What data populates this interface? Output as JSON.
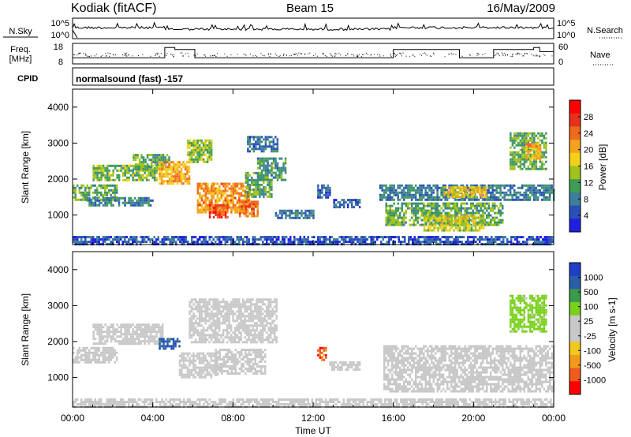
{
  "header": {
    "station": "Kodiak (fitACF)",
    "beam": "Beam 15",
    "date": "16/May/2009"
  },
  "noise_panel": {
    "left_label": "N.Sky",
    "right_label": "N.Search",
    "left_ticks": [
      "10^5",
      "10^0"
    ],
    "right_ticks": [
      "10^5",
      "10^0"
    ]
  },
  "freq_panel": {
    "left_label_line1": "Freq.",
    "left_label_line2": "[MHz]",
    "right_label": "Nave",
    "left_ticks": [
      "18",
      "8"
    ],
    "right_ticks": [
      "60",
      "0"
    ],
    "freq_steps": [
      {
        "x0": 0,
        "x1": 4.6,
        "y": 11
      },
      {
        "x0": 4.6,
        "x1": 5.1,
        "y": 16
      },
      {
        "x0": 5.1,
        "x1": 6.1,
        "y": 15
      },
      {
        "x0": 6.1,
        "x1": 16.0,
        "y": 11
      },
      {
        "x0": 16.0,
        "x1": 19.3,
        "y": 15
      },
      {
        "x0": 19.3,
        "x1": 21.0,
        "y": 11
      },
      {
        "x0": 21.0,
        "x1": 23.0,
        "y": 15
      },
      {
        "x0": 23.0,
        "x1": 23.3,
        "y": 16
      },
      {
        "x0": 23.3,
        "x1": 24.0,
        "y": 14
      }
    ]
  },
  "cpid": {
    "label": "CPID",
    "program": "normalsound (fast) -157"
  },
  "x_axis": {
    "title": "Time UT",
    "ticks": [
      "00:00",
      "04:00",
      "08:00",
      "12:00",
      "16:00",
      "20:00",
      "00:00"
    ]
  },
  "chart_data": [
    {
      "type": "heatmap",
      "quantity": "Power",
      "ylabel": "Slant Range [km]",
      "yticks": [
        "1000",
        "2000",
        "3000",
        "4000"
      ],
      "ylim": [
        180,
        4500
      ],
      "xlim": [
        0,
        24
      ],
      "colorbar_label": "Power [dB]",
      "colorbar_ticks": [
        "4",
        "8",
        "12",
        "16",
        "20",
        "24",
        "28"
      ],
      "colorbar_range": [
        0,
        32
      ],
      "palette": [
        "#1f1fe0",
        "#2a50b8",
        "#3d7f9a",
        "#3e9c57",
        "#a0c21c",
        "#f2d11b",
        "#f4a21c",
        "#ef6a1c",
        "#e8301c",
        "#ff0000"
      ],
      "regions": [
        {
          "x0": 0.0,
          "x1": 2.2,
          "r0": 1450,
          "r1": 1850,
          "level": 12
        },
        {
          "x0": 1.0,
          "x1": 4.2,
          "r0": 1950,
          "r1": 2400,
          "level": 13
        },
        {
          "x0": 3.0,
          "x1": 4.8,
          "r0": 2300,
          "r1": 2700,
          "level": 12
        },
        {
          "x0": 0.7,
          "x1": 4.0,
          "r0": 1300,
          "r1": 1500,
          "level": 8
        },
        {
          "x0": 4.3,
          "x1": 5.8,
          "r0": 1900,
          "r1": 2500,
          "level": 20
        },
        {
          "x0": 5.7,
          "x1": 6.9,
          "r0": 2500,
          "r1": 3100,
          "level": 14
        },
        {
          "x0": 6.2,
          "x1": 8.8,
          "r0": 1100,
          "r1": 1900,
          "level": 22
        },
        {
          "x0": 6.8,
          "x1": 7.7,
          "r0": 950,
          "r1": 1300,
          "level": 26
        },
        {
          "x0": 8.3,
          "x1": 9.2,
          "r0": 950,
          "r1": 1400,
          "level": 24
        },
        {
          "x0": 8.6,
          "x1": 9.9,
          "r0": 1500,
          "r1": 2200,
          "level": 12
        },
        {
          "x0": 9.2,
          "x1": 10.6,
          "r0": 2000,
          "r1": 2600,
          "level": 10
        },
        {
          "x0": 8.7,
          "x1": 10.2,
          "r0": 2800,
          "r1": 3200,
          "level": 7
        },
        {
          "x0": 10.1,
          "x1": 12.0,
          "r0": 950,
          "r1": 1150,
          "level": 7
        },
        {
          "x0": 12.2,
          "x1": 12.8,
          "r0": 1500,
          "r1": 1850,
          "level": 6
        },
        {
          "x0": 13.0,
          "x1": 14.3,
          "r0": 1250,
          "r1": 1450,
          "level": 6
        },
        {
          "x0": 15.3,
          "x1": 24.0,
          "r0": 1400,
          "r1": 1850,
          "level": 8
        },
        {
          "x0": 15.6,
          "x1": 21.5,
          "r0": 700,
          "r1": 1350,
          "level": 12
        },
        {
          "x0": 17.5,
          "x1": 20.5,
          "r0": 600,
          "r1": 1000,
          "level": 16
        },
        {
          "x0": 18.5,
          "x1": 20.6,
          "r0": 1500,
          "r1": 1800,
          "level": 18
        },
        {
          "x0": 21.8,
          "x1": 23.6,
          "r0": 2300,
          "r1": 3300,
          "level": 12
        },
        {
          "x0": 22.6,
          "x1": 23.3,
          "r0": 2600,
          "r1": 3000,
          "level": 20
        },
        {
          "x0": 0.0,
          "x1": 24.0,
          "r0": 200,
          "r1": 420,
          "level": 5
        }
      ]
    },
    {
      "type": "heatmap",
      "quantity": "Velocity",
      "ylabel": "Slant Range [km]",
      "yticks": [
        "1000",
        "2000",
        "3000",
        "4000"
      ],
      "ylim": [
        180,
        4500
      ],
      "xlim": [
        0,
        24
      ],
      "colorbar_label": "Velocity [m s-1]",
      "colorbar_ticks": [
        "1000",
        "500",
        "100",
        "25",
        "-25",
        "-100",
        "-500",
        "-1000"
      ],
      "colorbar_range": [
        -1200,
        1200
      ],
      "palette": [
        "#ff0000",
        "#f05a1c",
        "#f29a1c",
        "#f2c81c",
        "#c8c8c8",
        "#c8c8c8",
        "#7ad11c",
        "#3a9c4a",
        "#2a5ea8",
        "#1f3fc8"
      ],
      "regions": [
        {
          "x0": 0.0,
          "x1": 2.2,
          "r0": 1450,
          "r1": 1850,
          "level": 0
        },
        {
          "x0": 1.0,
          "x1": 4.5,
          "r0": 1950,
          "r1": 2500,
          "level": 0
        },
        {
          "x0": 4.3,
          "x1": 5.3,
          "r0": 1800,
          "r1": 2100,
          "level": 900
        },
        {
          "x0": 5.3,
          "x1": 7.2,
          "r0": 1000,
          "r1": 1700,
          "level": -60
        },
        {
          "x0": 7.1,
          "x1": 9.6,
          "r0": 1100,
          "r1": 1800,
          "level": 70
        },
        {
          "x0": 5.8,
          "x1": 10.2,
          "r0": 2000,
          "r1": 3200,
          "level": 0
        },
        {
          "x0": 12.2,
          "x1": 12.6,
          "r0": 1500,
          "r1": 1850,
          "level": -800
        },
        {
          "x0": 12.8,
          "x1": 14.3,
          "r0": 1250,
          "r1": 1450,
          "level": -150
        },
        {
          "x0": 15.5,
          "x1": 24.0,
          "r0": 600,
          "r1": 1900,
          "level": 0
        },
        {
          "x0": 21.8,
          "x1": 23.6,
          "r0": 2300,
          "r1": 3300,
          "level": 300
        },
        {
          "x0": 0.0,
          "x1": 24.0,
          "r0": 200,
          "r1": 420,
          "level": 0
        }
      ]
    }
  ]
}
